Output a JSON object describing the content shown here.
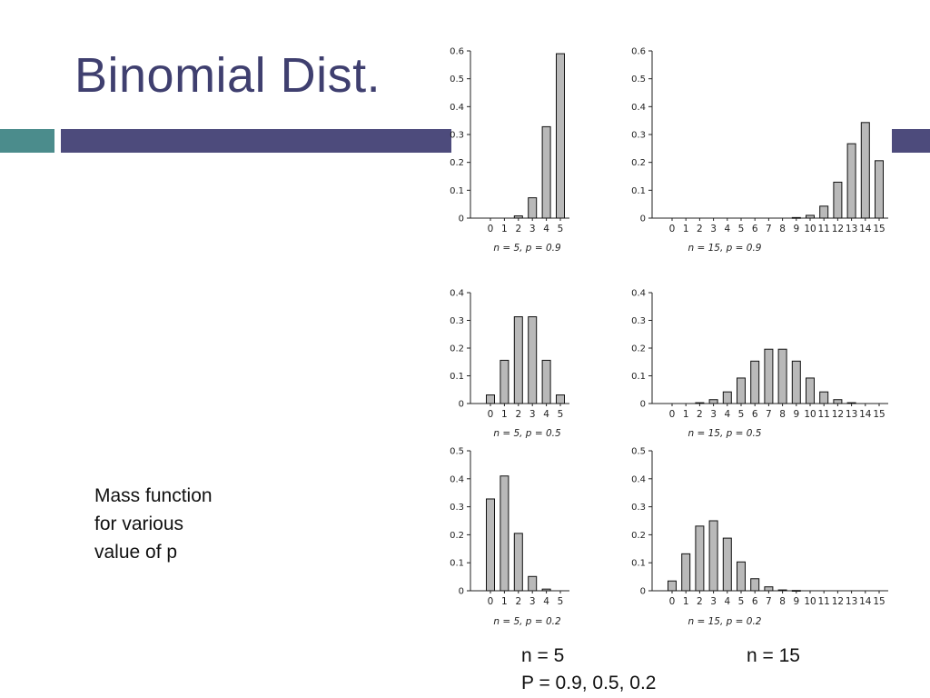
{
  "slide": {
    "title": "Binomial Dist.",
    "mass_text": [
      "Mass function",
      "for various",
      "value of p"
    ],
    "footer_left_1": "n = 5",
    "footer_right_1": "n = 15",
    "footer_left_2": "P = 0.9, 0.5, 0.2"
  },
  "colors": {
    "title": "#3f3f6f",
    "band_teal": "#4b8c8c",
    "band_main": "#4d4b7c",
    "bar_fill": "#b9b9b9",
    "bar_stroke": "#111111"
  },
  "chart_data": [
    {
      "type": "bar",
      "caption": "n = 5, p = 0.9",
      "categories": [
        "0",
        "1",
        "2",
        "3",
        "4",
        "5"
      ],
      "values": [
        0,
        0,
        0.008,
        0.073,
        0.328,
        0.59
      ],
      "ylim": [
        0,
        0.6
      ],
      "yticks": [
        "0",
        "0.1",
        "0.2",
        "0.3",
        "0.4",
        "0.5",
        "0.6"
      ]
    },
    {
      "type": "bar",
      "caption": "n = 15, p = 0.9",
      "categories": [
        "0",
        "1",
        "2",
        "3",
        "4",
        "5",
        "6",
        "7",
        "8",
        "9",
        "10",
        "11",
        "12",
        "13",
        "14",
        "15"
      ],
      "values": [
        0,
        0,
        0,
        0,
        0,
        0,
        0,
        0,
        0,
        0.002,
        0.01,
        0.043,
        0.129,
        0.267,
        0.343,
        0.206
      ],
      "ylim": [
        0,
        0.6
      ],
      "yticks": [
        "0",
        "0.1",
        "0.2",
        "0.3",
        "0.4",
        "0.5",
        "0.6"
      ]
    },
    {
      "type": "bar",
      "caption": "n = 5, p = 0.5",
      "categories": [
        "0",
        "1",
        "2",
        "3",
        "4",
        "5"
      ],
      "values": [
        0.031,
        0.156,
        0.313,
        0.313,
        0.156,
        0.031
      ],
      "ylim": [
        0,
        0.4
      ],
      "yticks": [
        "0",
        "0.1",
        "0.2",
        "0.3",
        "0.4"
      ]
    },
    {
      "type": "bar",
      "caption": "n = 15, p = 0.5",
      "categories": [
        "0",
        "1",
        "2",
        "3",
        "4",
        "5",
        "6",
        "7",
        "8",
        "9",
        "10",
        "11",
        "12",
        "13",
        "14",
        "15"
      ],
      "values": [
        0,
        0,
        0.003,
        0.014,
        0.042,
        0.092,
        0.153,
        0.196,
        0.196,
        0.153,
        0.092,
        0.042,
        0.014,
        0.003,
        0,
        0
      ],
      "ylim": [
        0,
        0.4
      ],
      "yticks": [
        "0",
        "0.1",
        "0.2",
        "0.3",
        "0.4"
      ]
    },
    {
      "type": "bar",
      "caption": "n = 5, p = 0.2",
      "categories": [
        "0",
        "1",
        "2",
        "3",
        "4",
        "5"
      ],
      "values": [
        0.328,
        0.41,
        0.205,
        0.051,
        0.006,
        0
      ],
      "ylim": [
        0,
        0.5
      ],
      "yticks": [
        "0",
        "0.1",
        "0.2",
        "0.3",
        "0.4",
        "0.5"
      ]
    },
    {
      "type": "bar",
      "caption": "n = 15, p = 0.2",
      "categories": [
        "0",
        "1",
        "2",
        "3",
        "4",
        "5",
        "6",
        "7",
        "8",
        "9",
        "10",
        "11",
        "12",
        "13",
        "14",
        "15"
      ],
      "values": [
        0.035,
        0.132,
        0.231,
        0.25,
        0.188,
        0.103,
        0.043,
        0.014,
        0.003,
        0.001,
        0,
        0,
        0,
        0,
        0,
        0
      ],
      "ylim": [
        0,
        0.5
      ],
      "yticks": [
        "0",
        "0.1",
        "0.2",
        "0.3",
        "0.4",
        "0.5"
      ]
    }
  ]
}
